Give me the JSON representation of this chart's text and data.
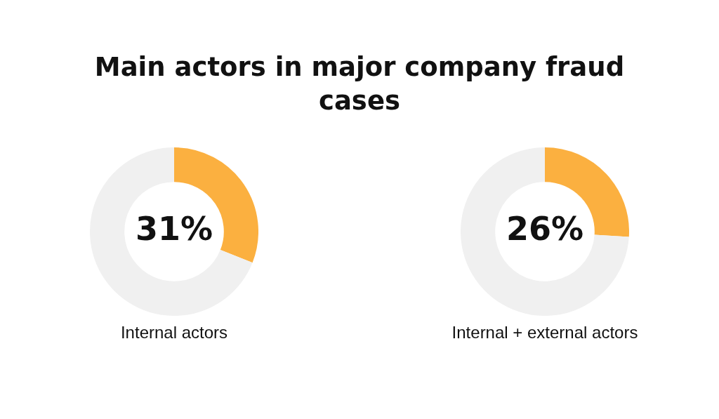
{
  "chart_data": [
    {
      "type": "donut",
      "title": "Main actors in major company fraud cases",
      "xlabel": "Internal actors",
      "categories": [
        null,
        null
      ],
      "values": [
        31,
        69
      ],
      "colors": [
        "#fbb040",
        "#f0f0f0"
      ],
      "value_labels": [
        "31%",
        null
      ],
      "legend": false
    },
    {
      "type": "donut",
      "xlabel": "Internal + external actors",
      "categories": [
        null,
        null
      ],
      "values": [
        26,
        74
      ],
      "colors": [
        "#fbb040",
        "#f0f0f0"
      ],
      "value_labels": [
        "26%",
        null
      ],
      "legend": false
    }
  ]
}
